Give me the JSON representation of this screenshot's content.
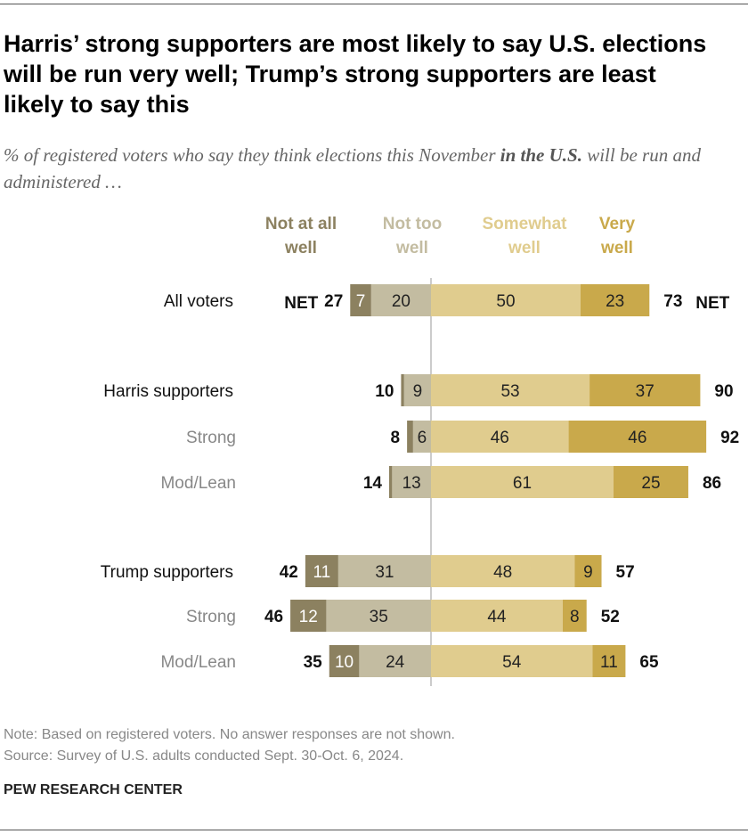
{
  "title": "Harris’ strong supporters are most likely to say U.S. elections will be run very well; Trump’s strong supporters are least likely to say this",
  "subtitle_pre": "% of registered voters who say they think elections this November ",
  "subtitle_bold": "in the U.S.",
  "subtitle_post": " will be run and administered …",
  "note": "Note: Based on registered voters. No answer responses are not shown.",
  "source": "Source: Survey of U.S. adults conducted Sept. 30-Oct. 6, 2024.",
  "brand": "PEW RESEARCH CENTER",
  "net_label": "NET",
  "chart_data": {
    "type": "bar",
    "orientation": "horizontal diverging stacked",
    "categories": [
      "All voters",
      "Harris supporters",
      "Strong",
      "Mod/Lean",
      "Trump supporters",
      "Strong",
      "Mod/Lean"
    ],
    "category_style": [
      "group",
      "group",
      "sub",
      "sub",
      "group",
      "sub",
      "sub"
    ],
    "series": [
      {
        "name": "Not at all well",
        "side": "negative",
        "color": "#8c8160",
        "values": [
          7,
          1,
          2,
          1,
          11,
          12,
          10
        ],
        "labels": [
          "7",
          "",
          "",
          "",
          "11",
          "12",
          "10"
        ]
      },
      {
        "name": "Not too well",
        "side": "negative",
        "color": "#c3bca1",
        "values": [
          20,
          9,
          6,
          13,
          31,
          35,
          24
        ],
        "labels": [
          "20",
          "9",
          "6",
          "13",
          "31",
          "35",
          "24"
        ]
      },
      {
        "name": "Somewhat well",
        "side": "positive",
        "color": "#e0cc8e",
        "values": [
          50,
          53,
          46,
          61,
          48,
          44,
          54
        ],
        "labels": [
          "50",
          "53",
          "46",
          "61",
          "48",
          "44",
          "54"
        ]
      },
      {
        "name": "Very well",
        "side": "positive",
        "color": "#c9a94b",
        "values": [
          23,
          37,
          46,
          25,
          9,
          8,
          11
        ],
        "labels": [
          "23",
          "37",
          "46",
          "25",
          "9",
          "8",
          "11"
        ]
      }
    ],
    "net_negative": [
      27,
      10,
      8,
      14,
      42,
      46,
      35
    ],
    "net_positive": [
      73,
      90,
      92,
      86,
      57,
      52,
      65
    ],
    "legend_placement": "top",
    "grid": false
  }
}
